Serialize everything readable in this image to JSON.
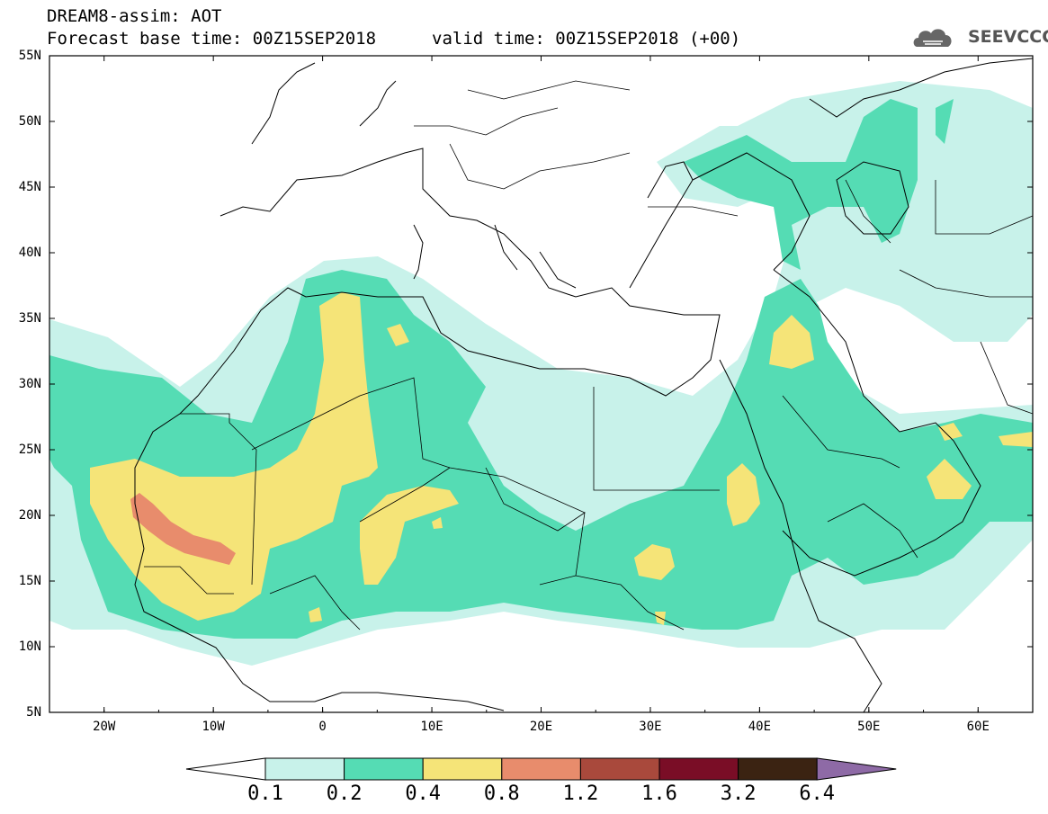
{
  "header": {
    "title": "DREAM8-assim: AOT",
    "base_time": "Forecast base time: 00Z15SEP2018",
    "valid_time": "valid time: 00Z15SEP2018 (+00)",
    "logo_text": "SEEVCCC"
  },
  "map": {
    "lat_labels": [
      "55N",
      "50N",
      "45N",
      "40N",
      "35N",
      "30N",
      "25N",
      "20N",
      "15N",
      "10N",
      "5N"
    ],
    "lon_labels": [
      "20W",
      "10W",
      "0",
      "10E",
      "20E",
      "30E",
      "40E",
      "50E",
      "60E"
    ],
    "lat_range": [
      5,
      55
    ],
    "lon_range": [
      -25,
      65
    ],
    "field": "Aerosol optical thickness (dust)"
  },
  "colorbar": {
    "labels": [
      "0.1",
      "0.2",
      "0.4",
      "0.8",
      "1.2",
      "1.6",
      "3.2",
      "6.4"
    ],
    "colors": [
      "#c8f2ea",
      "#55dcb4",
      "#f5e478",
      "#e88c6c",
      "#a9493c",
      "#7a0d26",
      "#3b2312",
      "#8e6aa6"
    ]
  },
  "colors": {
    "level_0_1": "#c8f2ea",
    "level_0_2": "#55dcb4",
    "level_0_4": "#f5e478",
    "level_0_8": "#e88c6c"
  }
}
